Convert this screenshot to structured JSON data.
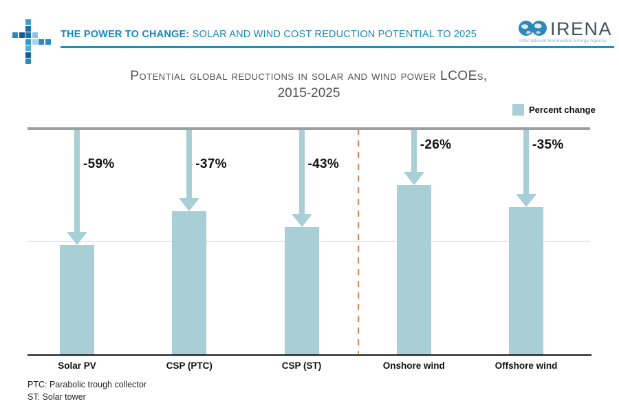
{
  "header": {
    "title_bold": "THE POWER TO CHANGE:",
    "title_rest": " SOLAR AND WIND COST REDUCTION POTENTIAL TO 2025",
    "accent_color": "#1a86ba",
    "irena_name": "IRENA",
    "irena_subtitle": "International Renewable Energy Agency",
    "logo_squares": [
      {
        "c": 2,
        "r": 0,
        "color": "#3e9ecf"
      },
      {
        "c": 2,
        "r": 1,
        "color": "#1a71a6"
      },
      {
        "c": 0,
        "r": 2,
        "color": "#2c88bd"
      },
      {
        "c": 1,
        "r": 2,
        "color": "#135f94"
      },
      {
        "c": 2,
        "r": 2,
        "color": "#1a71a6"
      },
      {
        "c": 3,
        "r": 2,
        "color": "#8ac4e2"
      },
      {
        "c": 2,
        "r": 3,
        "color": "#2e9ccd"
      },
      {
        "c": 3,
        "r": 3,
        "color": "#a6d3e9"
      },
      {
        "c": 4,
        "r": 3,
        "color": "#2c88bd"
      },
      {
        "c": 5,
        "r": 3,
        "color": "#2c88bd"
      },
      {
        "c": 2,
        "r": 4,
        "color": "#57acd6"
      },
      {
        "c": 2,
        "r": 5,
        "color": "#135f94"
      },
      {
        "c": 2,
        "r": 6,
        "color": "#2c88bd"
      }
    ]
  },
  "chart_title": {
    "line1": "Potential global reductions in solar and wind power LCOEs,",
    "line2": "2015-2025"
  },
  "legend": {
    "label": "Percent change",
    "swatch_color": "#a8cfd6"
  },
  "chart_data": {
    "type": "bar",
    "title": "Potential global reductions in solar and wind power LCOEs, 2015-2025",
    "categories": [
      "Solar PV",
      "CSP (PTC)",
      "CSP (ST)",
      "Onshore wind",
      "Offshore wind"
    ],
    "values": [
      -59,
      -37,
      -43,
      -26,
      -35
    ],
    "value_labels": [
      "-59%",
      "-37%",
      "-43%",
      "-26%",
      "-35%"
    ],
    "bar_height_fraction": [
      0.483,
      0.631,
      0.562,
      0.745,
      0.649
    ],
    "groups": [
      "solar",
      "solar",
      "solar",
      "wind",
      "wind"
    ],
    "legend": "Percent change",
    "legend_position": "top-right",
    "bar_color": "#a8cfd6",
    "separator_after_index": 2,
    "separator_color": "#ee8150",
    "grid": "top reference line at 100%, mid line at 50%, bottom axis"
  },
  "footnotes": [
    "PTC: Parabolic trough collector",
    "ST: Solar tower"
  ]
}
